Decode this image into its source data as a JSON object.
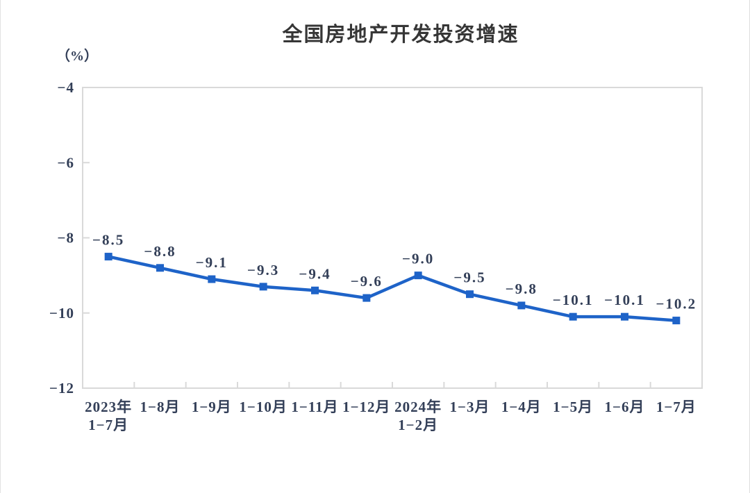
{
  "page": {
    "background": "#ffffff"
  },
  "chart": {
    "title": "全国房地产开发投资增速",
    "unit_label": "（%）",
    "line_color": "#1e63c8",
    "marker_color": "#1e63c8",
    "border_color": "#d9d9d9",
    "label_color": "#333f58",
    "title_color": "#363636"
  },
  "chart_data": {
    "type": "line",
    "title": "全国房地产开发投资增速",
    "xlabel": "",
    "ylabel": "（%）",
    "categories": [
      "2023年\n1-7月",
      "1-8月",
      "1-9月",
      "1-10月",
      "1-11月",
      "1-12月",
      "2024年\n1-2月",
      "1-3月",
      "1-4月",
      "1-5月",
      "1-6月",
      "1-7月"
    ],
    "values": [
      -8.5,
      -8.8,
      -9.1,
      -9.3,
      -9.4,
      -9.6,
      -9.0,
      -9.5,
      -9.8,
      -10.1,
      -10.1,
      -10.2
    ],
    "data_labels": [
      "-8.5",
      "-8.8",
      "-9.1",
      "-9.3",
      "-9.4",
      "-9.6",
      "-9.0",
      "-9.5",
      "-9.8",
      "-10.1",
      "-10.1",
      "-10.2"
    ],
    "ylim": [
      -12,
      -4
    ],
    "yticks": [
      -4,
      -6,
      -8,
      -10,
      -12
    ],
    "grid": false,
    "legend": false,
    "marker": "square",
    "line_color": "#1e63c8"
  }
}
